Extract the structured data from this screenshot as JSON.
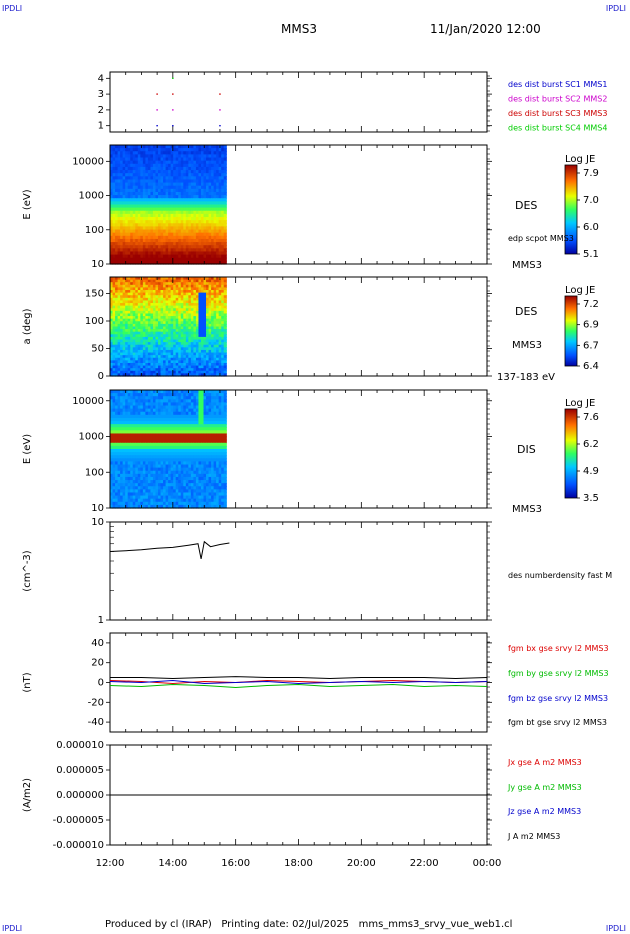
{
  "header": {
    "corner_tl": "IPDLI",
    "corner_tr": "IPDLI",
    "corner_bl": "IPDLI",
    "corner_br": "IPDLI",
    "spacecraft": "MMS3",
    "datetime": "11/Jan/2020 12:00"
  },
  "footer": {
    "text": "Produced by cl (IRAP)   Printing date: 02/Jul/2025   mms_mms3_srvy_vue_web1.cl"
  },
  "time_axis": {
    "ticks": [
      "12:00",
      "14:00",
      "16:00",
      "18:00",
      "20:00",
      "22:00",
      "00:00"
    ]
  },
  "colors": {
    "sc1": "#0000cc",
    "sc2": "#cc00cc",
    "sc3": "#cc0000",
    "sc4": "#00cc00",
    "bx": "#dd0000",
    "by": "#00bb00",
    "bz": "#0000cc",
    "bt": "#000000"
  },
  "chart_data": [
    {
      "type": "scatter",
      "yticks": [
        "4",
        "3",
        "2",
        "1"
      ],
      "ylim": [
        0.6,
        4.4
      ],
      "legend": [
        "des dist burst SC1 MMS1",
        "des dist burst SC2 MMS2",
        "des dist burst SC3 MMS3",
        "des dist burst SC4 MMS4"
      ],
      "series": [
        {
          "name": "des dist burst SC1 MMS1",
          "y": 1,
          "x_hours": [
            13.5,
            14.0,
            15.5
          ]
        },
        {
          "name": "des dist burst SC2 MMS2",
          "y": 2,
          "x_hours": [
            13.5,
            14.0,
            15.5
          ]
        },
        {
          "name": "des dist burst SC3 MMS3",
          "y": 3,
          "x_hours": [
            13.5,
            14.0,
            15.5
          ]
        },
        {
          "name": "des dist burst SC4 MMS4",
          "y": 4,
          "x_hours": [
            14.0
          ]
        }
      ]
    },
    {
      "type": "heatmap",
      "ylabel": "E (eV)",
      "yticks": [
        "10000",
        "1000",
        "100",
        "10"
      ],
      "yscale": "log",
      "ylim": [
        10,
        30000
      ],
      "data_span_hours": [
        12.0,
        15.7
      ],
      "label": "DES",
      "sublabel": "edp scpot MMS3",
      "bottom_label": "MMS3",
      "colorbar": {
        "title": "Log JE",
        "ticks": [
          "7.9",
          "7.0",
          "6.0",
          "5.1"
        ]
      }
    },
    {
      "type": "heatmap",
      "ylabel": "a (deg)",
      "yticks": [
        "150",
        "100",
        "50",
        "0"
      ],
      "ylim": [
        0,
        180
      ],
      "data_span_hours": [
        12.0,
        15.7
      ],
      "label": "DES",
      "sublabel": "MMS3",
      "bottom_label": "137-183 eV",
      "colorbar": {
        "title": "Log JE",
        "ticks": [
          "7.2",
          "6.9",
          "6.7",
          "6.4"
        ]
      }
    },
    {
      "type": "heatmap",
      "ylabel": "E (eV)",
      "yticks": [
        "10000",
        "1000",
        "100",
        "10"
      ],
      "yscale": "log",
      "ylim": [
        10,
        20000
      ],
      "data_span_hours": [
        12.0,
        15.7
      ],
      "label": "DIS",
      "bottom_label": "MMS3",
      "colorbar": {
        "title": "Log JE",
        "ticks": [
          "7.6",
          "6.2",
          "4.9",
          "3.5"
        ]
      }
    },
    {
      "type": "line",
      "ylabel": "(cm^-3)",
      "yticks": [
        "10",
        "1"
      ],
      "yscale": "log",
      "ylim": [
        1,
        10
      ],
      "legend": [
        "des numberdensity fast M"
      ],
      "series": [
        {
          "name": "des numberdensity fast M",
          "x_hours": [
            12.0,
            12.5,
            13.0,
            13.5,
            14.0,
            14.5,
            14.8,
            14.9,
            15.0,
            15.2,
            15.5,
            15.8
          ],
          "y": [
            5.0,
            5.1,
            5.2,
            5.4,
            5.5,
            5.8,
            6.0,
            4.2,
            6.3,
            5.6,
            5.9,
            6.1
          ]
        }
      ]
    },
    {
      "type": "line",
      "ylabel": "(nT)",
      "yticks": [
        "40",
        "20",
        "0",
        "-20",
        "-40"
      ],
      "ylim": [
        -50,
        50
      ],
      "legend": [
        "fgm bx gse srvy l2 MMS3",
        "fgm by gse srvy l2 MMS3",
        "fgm bz gse srvy l2 MMS3",
        "fgm bt gse srvy l2 MMS3"
      ],
      "series": [
        {
          "name": "fgm bx gse srvy l2 MMS3",
          "x_hours": [
            12,
            13,
            14,
            15,
            16,
            17,
            18,
            19,
            20,
            21,
            22,
            23,
            24
          ],
          "y": [
            2,
            1,
            -1,
            1,
            0,
            2,
            1,
            0,
            1,
            2,
            1,
            0,
            1
          ]
        },
        {
          "name": "fgm by gse srvy l2 MMS3",
          "x_hours": [
            12,
            13,
            14,
            15,
            16,
            17,
            18,
            19,
            20,
            21,
            22,
            23,
            24
          ],
          "y": [
            -3,
            -4,
            -2,
            -3,
            -5,
            -3,
            -2,
            -4,
            -3,
            -2,
            -4,
            -3,
            -4
          ]
        },
        {
          "name": "fgm bz gse srvy l2 MMS3",
          "x_hours": [
            12,
            13,
            14,
            15,
            16,
            17,
            18,
            19,
            20,
            21,
            22,
            23,
            24
          ],
          "y": [
            1,
            0,
            2,
            -1,
            0,
            1,
            -1,
            0,
            1,
            0,
            1,
            0,
            1
          ]
        },
        {
          "name": "fgm bt gse srvy l2 MMS3",
          "x_hours": [
            12,
            13,
            14,
            15,
            16,
            17,
            18,
            19,
            20,
            21,
            22,
            23,
            24
          ],
          "y": [
            5,
            5,
            4,
            5,
            6,
            5,
            5,
            4,
            5,
            5,
            5,
            4,
            5
          ]
        }
      ]
    },
    {
      "type": "line",
      "ylabel": "(A/m2)",
      "yticks": [
        "0.000010",
        "0.000005",
        "0.000000",
        "-0.000005",
        "-0.000010"
      ],
      "ylim": [
        -1e-05,
        1e-05
      ],
      "legend": [
        "Jx gse A m2 MMS3",
        "Jy gse A m2 MMS3",
        "Jz gse A m2 MMS3",
        "J A m2 MMS3"
      ],
      "series": [
        {
          "name": "J A m2 MMS3",
          "x_hours": [
            12,
            24
          ],
          "y": [
            0,
            0
          ]
        }
      ]
    }
  ]
}
